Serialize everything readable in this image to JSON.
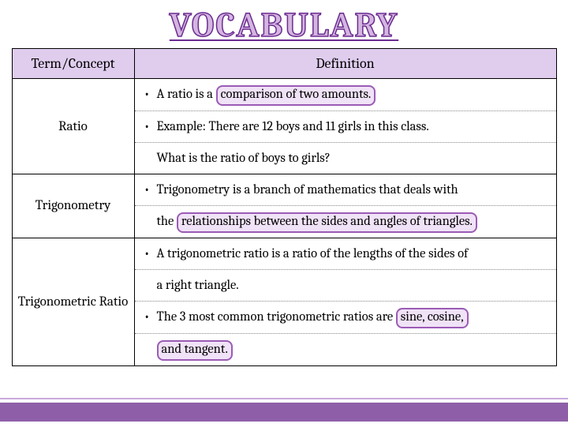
{
  "title": "VOCABULARY",
  "headers": {
    "term": "Term/Concept",
    "definition": "Definition"
  },
  "rows": [
    {
      "term": "Ratio",
      "lines": [
        {
          "pre": "A ratio is a ",
          "hl": "comparison of two amounts.",
          "post": "",
          "bulleted": true
        },
        {
          "pre": "Example:  There are 12 boys and 11 girls in this class.",
          "hl": "",
          "post": "",
          "bulleted": true
        },
        {
          "pre": "What is the ratio of boys to girls?",
          "hl": "",
          "post": "",
          "bulleted": false
        }
      ]
    },
    {
      "term": "Trigonometry",
      "lines": [
        {
          "pre": "Trigonometry is a branch of mathematics that deals with",
          "hl": "",
          "post": "",
          "bulleted": true
        },
        {
          "pre": "the ",
          "hl": "relationships between the sides and angles of triangles.",
          "post": "",
          "bulleted": false
        }
      ]
    },
    {
      "term": "Trigonometric Ratio",
      "lines": [
        {
          "pre": "A trigonometric ratio is a ratio of the lengths of the sides of",
          "hl": "",
          "post": "",
          "bulleted": true
        },
        {
          "pre": "a right triangle.",
          "hl": "",
          "post": "",
          "bulleted": false
        },
        {
          "pre": "The 3 most common trigonometric ratios are ",
          "hl": "sine, cosine,",
          "post": "",
          "bulleted": true
        },
        {
          "pre": "",
          "hl": "and tangent.",
          "post": "",
          "bulleted": false
        }
      ]
    }
  ],
  "colors": {
    "header_bg": "#e0cdee",
    "highlight_border": "#9b5bb5",
    "highlight_bg": "#f0e2f7",
    "footer_bar": "#8e5fa8",
    "footer_line": "#c9a8db"
  }
}
